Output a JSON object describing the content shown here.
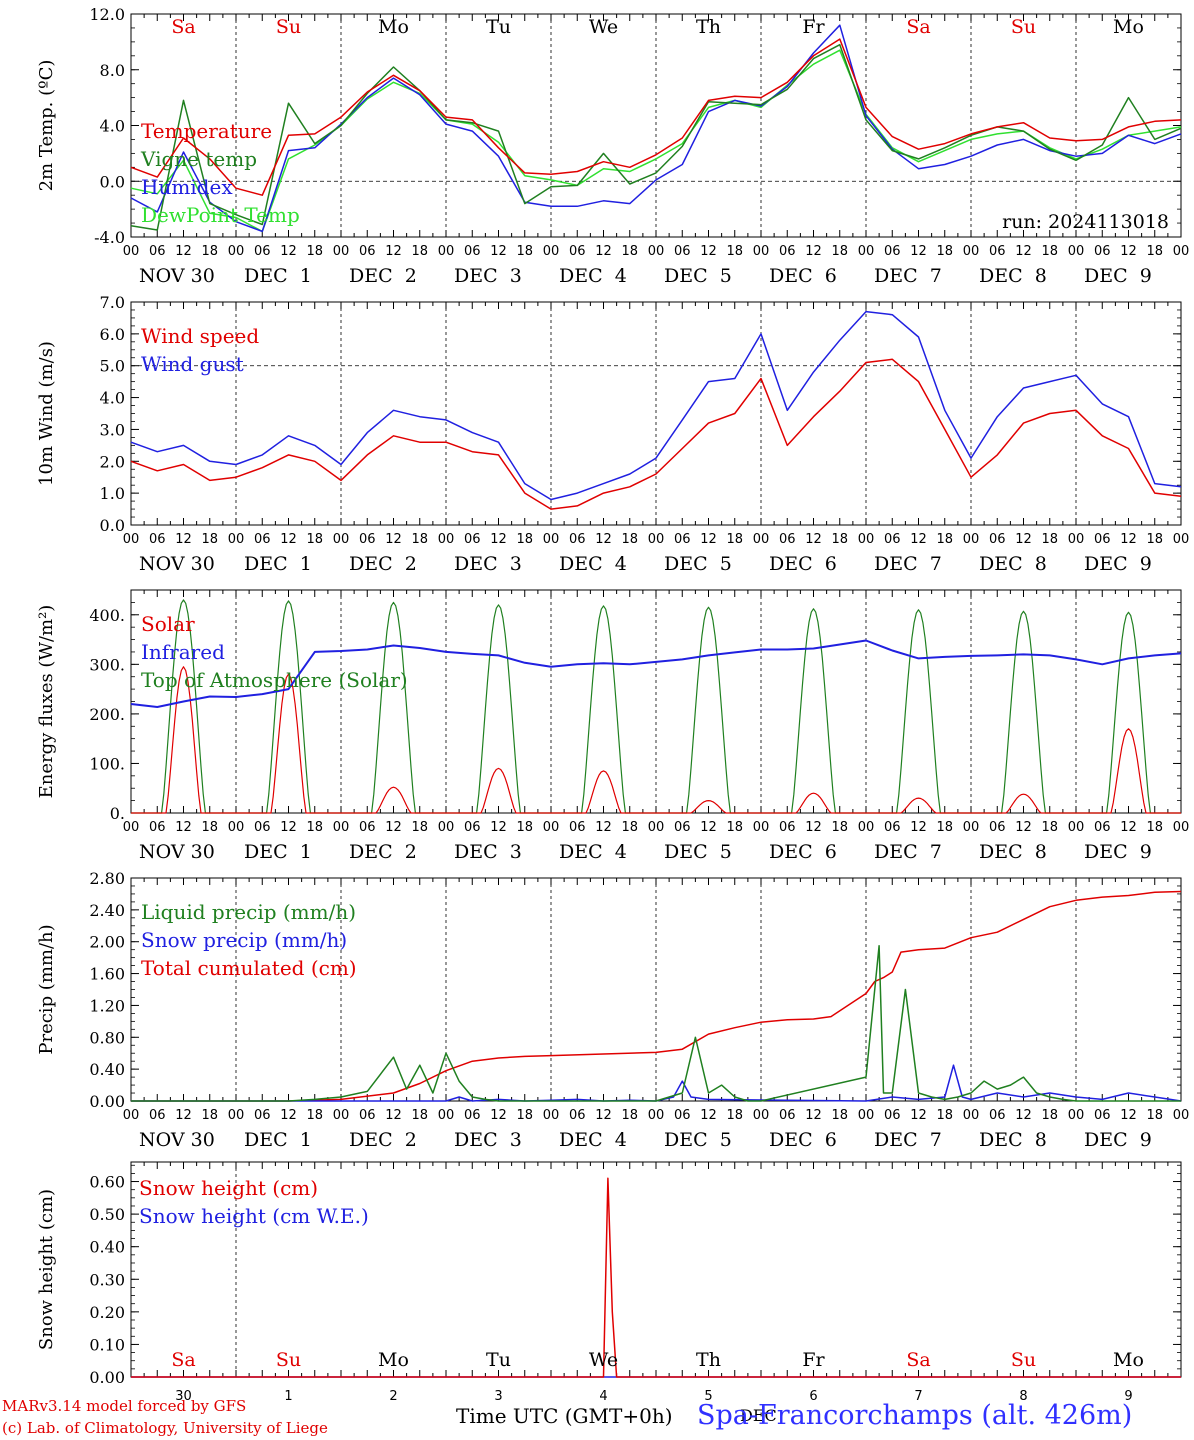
{
  "station": "Spa-Francorchamps (alt. 426m)",
  "run_label": "run: 2024113018",
  "footer": {
    "line1": "MARv3.14 model forced by GFS",
    "line2": "(c) Lab. of Climatology, University of Liege"
  },
  "x_axis_title": "Time UTC (GMT+0h)",
  "month_word": "DEC",
  "hour_ticks": [
    "00",
    "06",
    "12",
    "18"
  ],
  "end_tick": "00",
  "date_labels": [
    "NOV 30",
    "DEC  1",
    "DEC  2",
    "DEC  3",
    "DEC  4",
    "DEC  5",
    "DEC  6",
    "DEC  7",
    "DEC  8",
    "DEC  9"
  ],
  "weekdays": [
    "Sa",
    "Su",
    "Mo",
    "Tu",
    "We",
    "Th",
    "Fr",
    "Sa",
    "Su",
    "Mo"
  ],
  "weekday_colors": [
    "#e00000",
    "#e00000",
    "#000000",
    "#000000",
    "#000000",
    "#000000",
    "#000000",
    "#e00000",
    "#e00000",
    "#000000"
  ],
  "day_numbers": [
    "30",
    "1",
    "2",
    "3",
    "4",
    "5",
    "6",
    "7",
    "8",
    "9"
  ],
  "colors": {
    "red": "#e00000",
    "green": "#208020",
    "blue": "#2020e0",
    "lightgreen": "#30e030"
  },
  "chart_data": [
    {
      "type": "line",
      "ylabel": "2m Temp. (ºC)",
      "ylim": [
        -4,
        12
      ],
      "yticks": [
        "-4.0",
        "0.0",
        "4.0",
        "8.0",
        "12.0"
      ],
      "ytick_values": [
        -4,
        0,
        4,
        8,
        12
      ],
      "ref_line": 0,
      "x_unit": "hours since 30 Nov 00 UTC",
      "series": [
        {
          "name": "Temperature",
          "color": "#e00000",
          "x": [
            0,
            6,
            12,
            18,
            24,
            30,
            36,
            42,
            48,
            54,
            60,
            66,
            72,
            78,
            84,
            90,
            96,
            102,
            108,
            114,
            120,
            126,
            132,
            138,
            144,
            150,
            156,
            162,
            168,
            174,
            180,
            186,
            192,
            198,
            204,
            210,
            216,
            222,
            228,
            234,
            240
          ],
          "y": [
            1.0,
            0.3,
            3.1,
            1.6,
            -0.5,
            -1.0,
            3.3,
            3.4,
            4.6,
            6.4,
            7.6,
            6.5,
            4.6,
            4.4,
            2.4,
            0.6,
            0.5,
            0.7,
            1.4,
            1.0,
            1.9,
            3.1,
            5.8,
            6.1,
            6.0,
            7.1,
            9.0,
            10.2,
            5.3,
            3.2,
            2.3,
            2.7,
            3.4,
            3.9,
            4.2,
            3.1,
            2.9,
            3.0,
            3.9,
            4.3,
            4.4
          ]
        },
        {
          "name": "Vigne temp",
          "color": "#208020",
          "x": [
            0,
            6,
            12,
            18,
            24,
            30,
            36,
            42,
            48,
            54,
            60,
            66,
            72,
            78,
            84,
            90,
            96,
            102,
            108,
            114,
            120,
            126,
            132,
            138,
            144,
            150,
            156,
            162,
            168,
            174,
            180,
            186,
            192,
            198,
            204,
            210,
            216,
            222,
            228,
            234,
            240
          ],
          "y": [
            -3.2,
            -3.5,
            5.8,
            -1.6,
            -2.4,
            -3.1,
            5.6,
            2.7,
            4.0,
            6.3,
            8.2,
            6.5,
            4.4,
            4.2,
            3.6,
            -1.6,
            -0.4,
            -0.3,
            2.0,
            -0.2,
            0.6,
            2.5,
            5.7,
            5.6,
            5.5,
            6.6,
            8.8,
            9.8,
            4.4,
            2.2,
            1.6,
            2.4,
            3.3,
            3.9,
            3.6,
            2.3,
            1.5,
            2.6,
            6.0,
            3.0,
            3.8
          ]
        },
        {
          "name": "Humidex",
          "color": "#2020e0",
          "x": [
            0,
            6,
            12,
            18,
            24,
            30,
            36,
            42,
            48,
            54,
            60,
            66,
            72,
            78,
            84,
            90,
            96,
            102,
            108,
            114,
            120,
            126,
            132,
            138,
            144,
            150,
            156,
            162,
            168,
            174,
            180,
            186,
            192,
            198,
            204,
            210,
            216,
            222,
            228,
            234,
            240
          ],
          "y": [
            -1.2,
            -2.2,
            2.1,
            -1.5,
            -2.9,
            -3.6,
            2.2,
            2.4,
            4.1,
            6.0,
            7.4,
            6.2,
            4.1,
            3.6,
            1.8,
            -1.5,
            -1.8,
            -1.8,
            -1.4,
            -1.6,
            0.1,
            1.2,
            5.0,
            5.8,
            5.4,
            6.8,
            9.2,
            11.2,
            4.7,
            2.3,
            0.9,
            1.2,
            1.8,
            2.6,
            3.0,
            2.2,
            1.8,
            2.0,
            3.3,
            2.7,
            3.4
          ]
        },
        {
          "name": "DewPoint Temp",
          "color": "#30e030",
          "x": [
            0,
            6,
            12,
            18,
            24,
            30,
            36,
            42,
            48,
            54,
            60,
            66,
            72,
            78,
            84,
            90,
            96,
            102,
            108,
            114,
            120,
            126,
            132,
            138,
            144,
            150,
            156,
            162,
            168,
            174,
            180,
            186,
            192,
            198,
            204,
            210,
            216,
            222,
            228,
            234,
            240
          ],
          "y": [
            -0.5,
            -0.9,
            1.5,
            -2.3,
            -2.6,
            -3.6,
            1.6,
            2.6,
            4.0,
            5.9,
            7.1,
            6.3,
            4.4,
            4.1,
            2.8,
            0.4,
            0.1,
            -0.3,
            0.9,
            0.7,
            1.6,
            2.7,
            5.3,
            5.8,
            5.3,
            6.9,
            8.4,
            9.4,
            4.8,
            2.4,
            1.4,
            2.2,
            3.0,
            3.4,
            3.6,
            2.4,
            1.6,
            2.3,
            3.3,
            3.6,
            3.9
          ]
        }
      ]
    },
    {
      "type": "line",
      "ylabel": "10m Wind (m/s)",
      "ylim": [
        0,
        7
      ],
      "yticks": [
        "0.0",
        "1.0",
        "2.0",
        "3.0",
        "4.0",
        "5.0",
        "6.0",
        "7.0"
      ],
      "ytick_values": [
        0,
        1,
        2,
        3,
        4,
        5,
        6,
        7
      ],
      "ref_line": 5,
      "x_unit": "hours since 30 Nov 00 UTC",
      "series": [
        {
          "name": "Wind speed",
          "color": "#e00000",
          "x": [
            0,
            6,
            12,
            18,
            24,
            30,
            36,
            42,
            48,
            54,
            60,
            66,
            72,
            78,
            84,
            90,
            96,
            102,
            108,
            114,
            120,
            126,
            132,
            138,
            144,
            150,
            156,
            162,
            168,
            174,
            180,
            186,
            192,
            198,
            204,
            210,
            216,
            222,
            228,
            234,
            240
          ],
          "y": [
            2.0,
            1.7,
            1.9,
            1.4,
            1.5,
            1.8,
            2.2,
            2.0,
            1.4,
            2.2,
            2.8,
            2.6,
            2.6,
            2.3,
            2.2,
            1.0,
            0.5,
            0.6,
            1.0,
            1.2,
            1.6,
            2.4,
            3.2,
            3.5,
            4.6,
            2.5,
            3.4,
            4.2,
            5.1,
            5.2,
            4.5,
            3.0,
            1.5,
            2.2,
            3.2,
            3.5,
            3.6,
            2.8,
            2.4,
            1.0,
            0.9
          ]
        },
        {
          "name": "Wind gust",
          "color": "#2020e0",
          "x": [
            0,
            6,
            12,
            18,
            24,
            30,
            36,
            42,
            48,
            54,
            60,
            66,
            72,
            78,
            84,
            90,
            96,
            102,
            108,
            114,
            120,
            126,
            132,
            138,
            144,
            150,
            156,
            162,
            168,
            174,
            180,
            186,
            192,
            198,
            204,
            210,
            216,
            222,
            228,
            234,
            240
          ],
          "y": [
            2.6,
            2.3,
            2.5,
            2.0,
            1.9,
            2.2,
            2.8,
            2.5,
            1.9,
            2.9,
            3.6,
            3.4,
            3.3,
            2.9,
            2.6,
            1.3,
            0.8,
            1.0,
            1.3,
            1.6,
            2.1,
            3.3,
            4.5,
            4.6,
            6.0,
            3.6,
            4.8,
            5.8,
            6.7,
            6.6,
            5.9,
            3.6,
            2.1,
            3.4,
            4.3,
            4.5,
            4.7,
            3.8,
            3.4,
            1.3,
            1.2
          ]
        }
      ]
    },
    {
      "type": "line",
      "ylabel": "Energy fluxes (W/m²)",
      "ylim": [
        0,
        450
      ],
      "yticks": [
        "0.",
        "100.",
        "200.",
        "300.",
        "400."
      ],
      "ytick_values": [
        0,
        100,
        200,
        300,
        400
      ],
      "x_unit": "hours since 30 Nov 00 UTC",
      "solar_noon_hour": 12,
      "toa_peaks": [
        430,
        428,
        425,
        420,
        418,
        415,
        412,
        410,
        407,
        405
      ],
      "solar_peaks": [
        295,
        280,
        52,
        90,
        85,
        25,
        40,
        30,
        38,
        170
      ],
      "series": [
        {
          "name": "Solar",
          "color": "#e00000"
        },
        {
          "name": "Infrared",
          "color": "#2020e0",
          "x": [
            0,
            6,
            12,
            18,
            24,
            30,
            36,
            42,
            48,
            54,
            60,
            66,
            72,
            78,
            84,
            90,
            96,
            102,
            108,
            114,
            120,
            126,
            132,
            138,
            144,
            150,
            156,
            162,
            168,
            174,
            180,
            186,
            192,
            198,
            204,
            210,
            216,
            222,
            228,
            234,
            240
          ],
          "y": [
            220,
            214,
            225,
            235,
            234,
            240,
            250,
            325,
            327,
            330,
            338,
            333,
            325,
            321,
            318,
            303,
            295,
            300,
            302,
            300,
            305,
            310,
            318,
            324,
            330,
            330,
            332,
            340,
            348,
            328,
            312,
            315,
            317,
            318,
            320,
            318,
            310,
            300,
            312,
            318,
            322
          ]
        },
        {
          "name": "Top of Atmosphere (Solar)",
          "color": "#208020"
        }
      ]
    },
    {
      "type": "line",
      "ylabel": "Precip (mm/h)",
      "ylim": [
        0,
        2.8
      ],
      "yticks": [
        "0.00",
        "0.40",
        "0.80",
        "1.20",
        "1.60",
        "2.00",
        "2.40",
        "2.80"
      ],
      "ytick_values": [
        0,
        0.4,
        0.8,
        1.2,
        1.6,
        2.0,
        2.4,
        2.8
      ],
      "x_unit": "hours since 30 Nov 00 UTC",
      "series": [
        {
          "name": "Liquid precip (mm/h)",
          "color": "#208020",
          "x": [
            0,
            36,
            42,
            48,
            54,
            60,
            63,
            66,
            69,
            72,
            75,
            78,
            81,
            84,
            90,
            120,
            126,
            129,
            132,
            135,
            138,
            141,
            144,
            168,
            171,
            172,
            174,
            177,
            180,
            183,
            186,
            189,
            192,
            195,
            198,
            201,
            204,
            207,
            210,
            213,
            216,
            240
          ],
          "y": [
            0,
            0,
            0.02,
            0.05,
            0.12,
            0.55,
            0.15,
            0.45,
            0.1,
            0.6,
            0.25,
            0.05,
            0.02,
            0,
            0,
            0,
            0.1,
            0.8,
            0.1,
            0.2,
            0.05,
            0,
            0,
            0.3,
            1.95,
            0.1,
            0.1,
            1.4,
            0.1,
            0.05,
            0.02,
            0.05,
            0.1,
            0.25,
            0.15,
            0.2,
            0.3,
            0.1,
            0.05,
            0.02,
            0,
            0
          ]
        },
        {
          "name": "Snow precip (mm/h)",
          "color": "#2020e0",
          "x": [
            0,
            72,
            75,
            78,
            84,
            90,
            96,
            102,
            108,
            114,
            120,
            124,
            126,
            128,
            132,
            168,
            174,
            180,
            186,
            188,
            190,
            192,
            198,
            204,
            210,
            216,
            222,
            228,
            234,
            240
          ],
          "y": [
            0,
            0,
            0.05,
            0,
            0.02,
            0,
            0.01,
            0.02,
            0,
            0.01,
            0,
            0.05,
            0.25,
            0.05,
            0.02,
            0,
            0.05,
            0.02,
            0.05,
            0.45,
            0.05,
            0.02,
            0.1,
            0.05,
            0.1,
            0.05,
            0.02,
            0.1,
            0.05,
            0
          ]
        },
        {
          "name": "Total cumulated (cm)",
          "color": "#e00000",
          "x": [
            0,
            36,
            48,
            60,
            66,
            72,
            78,
            84,
            90,
            96,
            108,
            120,
            126,
            132,
            138,
            144,
            150,
            156,
            160,
            168,
            170,
            172,
            174,
            176,
            180,
            186,
            192,
            198,
            204,
            210,
            216,
            222,
            228,
            234,
            240
          ],
          "y": [
            0,
            0,
            0.02,
            0.1,
            0.22,
            0.38,
            0.5,
            0.54,
            0.56,
            0.57,
            0.59,
            0.61,
            0.65,
            0.84,
            0.92,
            0.99,
            1.02,
            1.03,
            1.06,
            1.35,
            1.5,
            1.55,
            1.62,
            1.87,
            1.9,
            1.92,
            2.05,
            2.12,
            2.28,
            2.44,
            2.52,
            2.56,
            2.58,
            2.62,
            2.63
          ]
        }
      ]
    },
    {
      "type": "line",
      "ylabel": "Snow height (cm)",
      "ylim": [
        0,
        0.66
      ],
      "yticks": [
        "0.00",
        "0.10",
        "0.20",
        "0.30",
        "0.40",
        "0.50",
        "0.60"
      ],
      "ytick_values": [
        0,
        0.1,
        0.2,
        0.3,
        0.4,
        0.5,
        0.6
      ],
      "x_unit": "hours since 30 Nov 00 UTC",
      "series": [
        {
          "name": "Snow height (cm)",
          "color": "#e00000",
          "x": [
            0,
            108,
            109,
            110,
            111,
            240
          ],
          "y": [
            0,
            0,
            0.61,
            0.2,
            0,
            0
          ]
        },
        {
          "name": "Snow height (cm W.E.)",
          "color": "#2020e0",
          "x": [
            0,
            240
          ],
          "y": [
            0,
            0
          ]
        }
      ]
    }
  ]
}
